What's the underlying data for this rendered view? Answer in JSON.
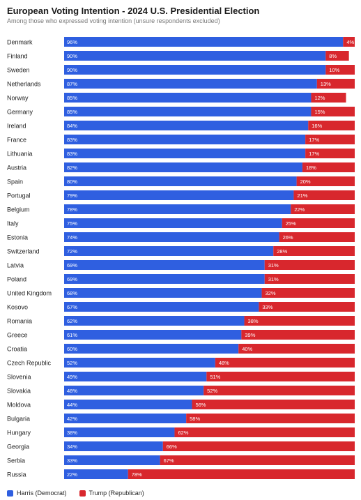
{
  "chart_data": {
    "type": "bar",
    "orientation": "horizontal",
    "stacked": true,
    "title": "European Voting Intention - 2024 U.S. Presidential Election",
    "subtitle": "Among those who expressed voting intention (unsure respondents excluded)",
    "categories": [
      "Denmark",
      "Finland",
      "Sweden",
      "Netherlands",
      "Norway",
      "Germany",
      "Ireland",
      "France",
      "Lithuania",
      "Austria",
      "Spain",
      "Portugal",
      "Belgium",
      "Italy",
      "Estonia",
      "Switzerland",
      "Latvia",
      "Poland",
      "United Kingdom",
      "Kosovo",
      "Romania",
      "Greece",
      "Croatia",
      "Czech Republic",
      "Slovenia",
      "Slovakia",
      "Moldova",
      "Bulgaria",
      "Hungary",
      "Georgia",
      "Serbia",
      "Russia"
    ],
    "series": [
      {
        "name": "Harris (Democrat)",
        "color": "#2f5fe0",
        "values": [
          96,
          90,
          90,
          87,
          85,
          85,
          84,
          83,
          83,
          82,
          80,
          79,
          78,
          75,
          74,
          72,
          69,
          69,
          68,
          67,
          62,
          61,
          60,
          52,
          49,
          48,
          44,
          42,
          38,
          34,
          33,
          22
        ]
      },
      {
        "name": "Trump (Republican)",
        "color": "#d8272d",
        "values": [
          4,
          8,
          10,
          13,
          12,
          15,
          16,
          17,
          17,
          18,
          20,
          21,
          22,
          25,
          26,
          28,
          31,
          31,
          32,
          33,
          38,
          39,
          40,
          48,
          51,
          52,
          56,
          58,
          62,
          66,
          67,
          78
        ]
      }
    ],
    "value_suffix": "%",
    "xlim": [
      0,
      100
    ],
    "legend_position": "bottom-left",
    "grid": false
  }
}
